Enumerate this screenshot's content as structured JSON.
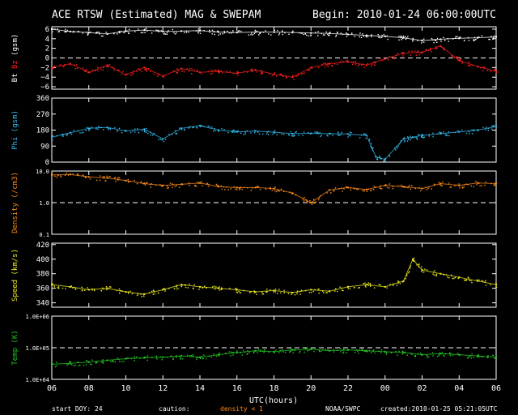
{
  "header": {
    "title": "ACE RTSW (Estimated) MAG & SWEPAM",
    "begin": "Begin: 2010-01-24 06:00:00UTC"
  },
  "footer": {
    "start_doy": "start DOY:  24",
    "caution": "caution:",
    "density_note": "density < 1",
    "agency": "NOAA/SWPC",
    "created": "created:2010-01-25 05:21:05UTC"
  },
  "colors": {
    "background": "#000000",
    "axes": "#ffffff",
    "bt": "#ffffff",
    "bz": "#ff2020",
    "phi": "#33bbee",
    "density": "#ff8c1a",
    "speed": "#eeee22",
    "temp": "#22cc22"
  },
  "chart_data": [
    {
      "type": "scatter",
      "name": "mag-bt-bz",
      "ylabel_parts": [
        {
          "text": "Bt",
          "color": "#ffffff"
        },
        {
          "text": " Bz",
          "color": "#ff2020"
        },
        {
          "text": "  (gsm)",
          "color": "#ffffff"
        }
      ],
      "ylim": [
        -6.5,
        6.5
      ],
      "yticks": [
        -6,
        -4,
        -2,
        0,
        2,
        4,
        6
      ],
      "ytick_labels": [
        "−6",
        "−4",
        "−2",
        "0",
        "2",
        "4",
        "6"
      ],
      "dashed_lines": [
        0
      ],
      "series": [
        {
          "name": "Bt",
          "color": "#ffffff",
          "x": [
            0,
            1,
            2,
            3,
            4,
            5,
            6,
            7,
            8,
            9,
            10,
            11,
            12,
            13,
            14,
            15,
            16,
            17,
            18,
            19,
            20,
            21,
            22,
            23,
            24
          ],
          "y": [
            6.0,
            5.5,
            5.3,
            5.0,
            5.6,
            5.8,
            5.5,
            5.6,
            5.7,
            5.4,
            5.3,
            5.4,
            5.4,
            5.3,
            5.2,
            5.1,
            4.9,
            4.7,
            4.5,
            4.2,
            3.6,
            3.9,
            4.1,
            4.2,
            4.4
          ]
        },
        {
          "name": "Bz",
          "color": "#ff2020",
          "x": [
            0,
            1,
            2,
            3,
            4,
            5,
            6,
            7,
            8,
            9,
            10,
            11,
            12,
            13,
            14,
            15,
            16,
            17,
            18,
            19,
            20,
            21,
            22,
            23,
            24
          ],
          "y": [
            -2.0,
            -1.2,
            -3.0,
            -1.5,
            -3.5,
            -2.0,
            -3.8,
            -2.2,
            -3.0,
            -2.8,
            -3.2,
            -2.5,
            -3.4,
            -4.0,
            -2.0,
            -1.2,
            -0.8,
            -1.5,
            -0.2,
            1.0,
            1.2,
            2.5,
            -0.5,
            -1.8,
            -2.8
          ]
        }
      ]
    },
    {
      "type": "scatter",
      "name": "mag-phi",
      "ylabel_parts": [
        {
          "text": "Phi (gsm)",
          "color": "#33bbee"
        }
      ],
      "ylim": [
        0,
        360
      ],
      "yticks": [
        0,
        90,
        180,
        270,
        360
      ],
      "ytick_labels": [
        "0",
        "90",
        "180",
        "270",
        "360"
      ],
      "dashed_lines": [],
      "series": [
        {
          "name": "Phi",
          "color": "#33bbee",
          "x": [
            0,
            1,
            2,
            3,
            4,
            5,
            6,
            7,
            8,
            9,
            10,
            11,
            12,
            13,
            14,
            15,
            16,
            17,
            17.5,
            18,
            19,
            19.5,
            20,
            21,
            22,
            23,
            24
          ],
          "y": [
            140,
            165,
            190,
            195,
            175,
            185,
            130,
            190,
            205,
            180,
            170,
            175,
            168,
            160,
            162,
            160,
            158,
            150,
            30,
            15,
            130,
            140,
            150,
            160,
            170,
            180,
            200
          ]
        }
      ]
    },
    {
      "type": "scatter",
      "name": "swepam-density",
      "ylabel_parts": [
        {
          "text": "Density (/cm3)",
          "color": "#ff8c1a"
        }
      ],
      "yscale": "log",
      "ylim": [
        0.1,
        10.0
      ],
      "yticks": [
        0.1,
        1.0,
        10.0
      ],
      "ytick_labels": [
        "0.1",
        "1.0",
        "10.0"
      ],
      "dashed_lines": [
        1.0
      ],
      "series": [
        {
          "name": "Density",
          "color": "#ff8c1a",
          "x": [
            0,
            1,
            2,
            3,
            4,
            5,
            6,
            7,
            8,
            9,
            10,
            11,
            12,
            13,
            14,
            15,
            16,
            17,
            18,
            19,
            20,
            21,
            22,
            23,
            24
          ],
          "y": [
            7.5,
            7.8,
            6.5,
            6.0,
            5.0,
            4.0,
            3.5,
            3.8,
            4.2,
            3.2,
            3.0,
            3.0,
            2.8,
            2.0,
            1.0,
            2.5,
            3.0,
            2.6,
            3.5,
            3.2,
            2.8,
            4.0,
            3.5,
            4.2,
            4.0
          ]
        }
      ]
    },
    {
      "type": "scatter",
      "name": "swepam-speed",
      "ylabel_parts": [
        {
          "text": "Speed (km/s)",
          "color": "#eeee22"
        }
      ],
      "ylim": [
        334,
        422
      ],
      "yticks": [
        340,
        360,
        380,
        400,
        420
      ],
      "ytick_labels": [
        "340",
        "360",
        "380",
        "400",
        "420"
      ],
      "dashed_lines": [],
      "series": [
        {
          "name": "Speed",
          "color": "#eeee22",
          "x": [
            0,
            1,
            2,
            3,
            4,
            5,
            6,
            7,
            8,
            9,
            10,
            11,
            12,
            13,
            14,
            15,
            16,
            17,
            18,
            19,
            19.5,
            20,
            21,
            22,
            23,
            24
          ],
          "y": [
            365,
            362,
            358,
            360,
            355,
            352,
            358,
            365,
            362,
            360,
            358,
            355,
            357,
            354,
            358,
            356,
            362,
            365,
            362,
            370,
            400,
            385,
            380,
            375,
            370,
            365
          ]
        }
      ]
    },
    {
      "type": "scatter",
      "name": "swepam-temp",
      "ylabel_parts": [
        {
          "text": "Temp (K)",
          "color": "#22cc22"
        }
      ],
      "yscale": "log",
      "ylim": [
        10000,
        1000000
      ],
      "yticks": [
        10000,
        100000,
        1000000
      ],
      "ytick_labels": [
        "1.0E+04",
        "1.0E+05",
        "1.0E+06"
      ],
      "dashed_lines": [
        100000
      ],
      "series": [
        {
          "name": "Temp",
          "color": "#22cc22",
          "x": [
            0,
            1,
            2,
            3,
            4,
            5,
            6,
            7,
            8,
            9,
            10,
            11,
            12,
            13,
            14,
            15,
            16,
            17,
            18,
            19,
            20,
            21,
            22,
            23,
            24
          ],
          "y": [
            30000,
            32000,
            35000,
            40000,
            45000,
            48000,
            50000,
            55000,
            50000,
            60000,
            70000,
            80000,
            75000,
            85000,
            90000,
            80000,
            85000,
            80000,
            75000,
            70000,
            60000,
            65000,
            60000,
            55000,
            50000
          ]
        }
      ]
    }
  ],
  "xaxis": {
    "label": "UTC(hours)",
    "range": [
      0,
      24
    ],
    "ticks": [
      0,
      2,
      4,
      6,
      8,
      10,
      12,
      14,
      16,
      18,
      20,
      22,
      24
    ],
    "tick_labels": [
      "06",
      "08",
      "10",
      "12",
      "14",
      "16",
      "18",
      "20",
      "22",
      "00",
      "02",
      "04",
      "06"
    ]
  }
}
